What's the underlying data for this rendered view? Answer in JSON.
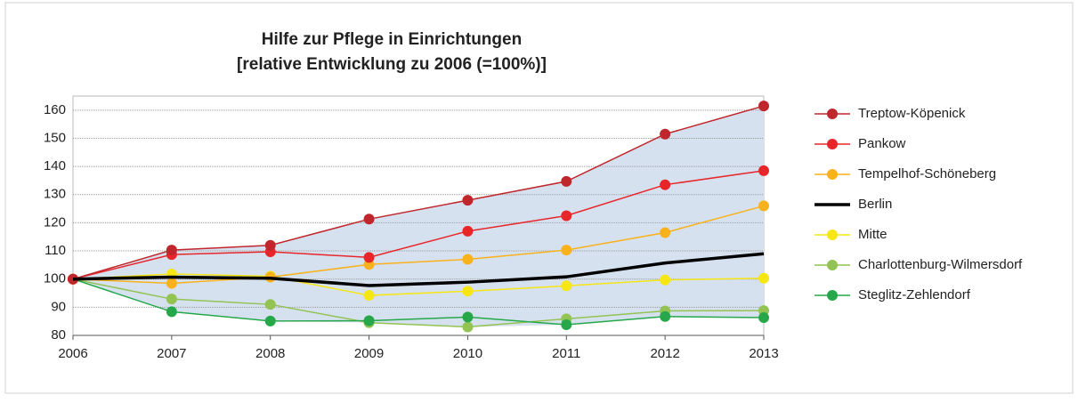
{
  "chart_data": {
    "type": "line",
    "title": [
      "Hilfe zur Pflege in Einrichtungen",
      "[relative Entwicklung zu 2006 (=100%)]"
    ],
    "x": [
      2006,
      2007,
      2008,
      2009,
      2010,
      2011,
      2012,
      2013
    ],
    "xlim": [
      2006,
      2013
    ],
    "xticks": [
      2006,
      2007,
      2008,
      2009,
      2010,
      2011,
      2012,
      2013
    ],
    "ylim": [
      80,
      165
    ],
    "yticks": [
      80,
      90,
      100,
      110,
      120,
      130,
      140,
      150,
      160
    ],
    "grid": true,
    "legend": "right",
    "series": [
      {
        "name": "Treptow-Köpenick",
        "color": "#c0272d",
        "values": [
          100,
          110.3,
          112,
          121.3,
          128,
          134.7,
          151.5,
          161.5
        ]
      },
      {
        "name": "Pankow",
        "color": "#e8262a",
        "values": [
          100,
          108.7,
          109.7,
          107.7,
          117,
          122.5,
          133.5,
          138.5
        ]
      },
      {
        "name": "Tempelhof-Schöneberg",
        "color": "#f9b21b",
        "values": [
          100,
          98.5,
          100.7,
          105.2,
          107,
          110.3,
          116.5,
          126
        ]
      },
      {
        "name": "Berlin",
        "color": "#000000",
        "markers": false,
        "values": [
          100,
          100.7,
          100.3,
          97.7,
          98.9,
          100.8,
          105.7,
          109
        ]
      },
      {
        "name": "Mitte",
        "color": "#f5e614",
        "values": [
          100,
          101.8,
          101,
          94.2,
          95.7,
          97.6,
          99.7,
          100.3
        ]
      },
      {
        "name": "Charlottenburg-Wilmersdorf",
        "color": "#92c353",
        "values": [
          100,
          92.9,
          91,
          84.5,
          83,
          85.9,
          88.7,
          88.8
        ]
      },
      {
        "name": "Steglitz-Zehlendorf",
        "color": "#26a84a",
        "values": [
          100,
          88.4,
          85.1,
          85.2,
          86.5,
          83.8,
          86.7,
          86.3
        ]
      }
    ]
  }
}
